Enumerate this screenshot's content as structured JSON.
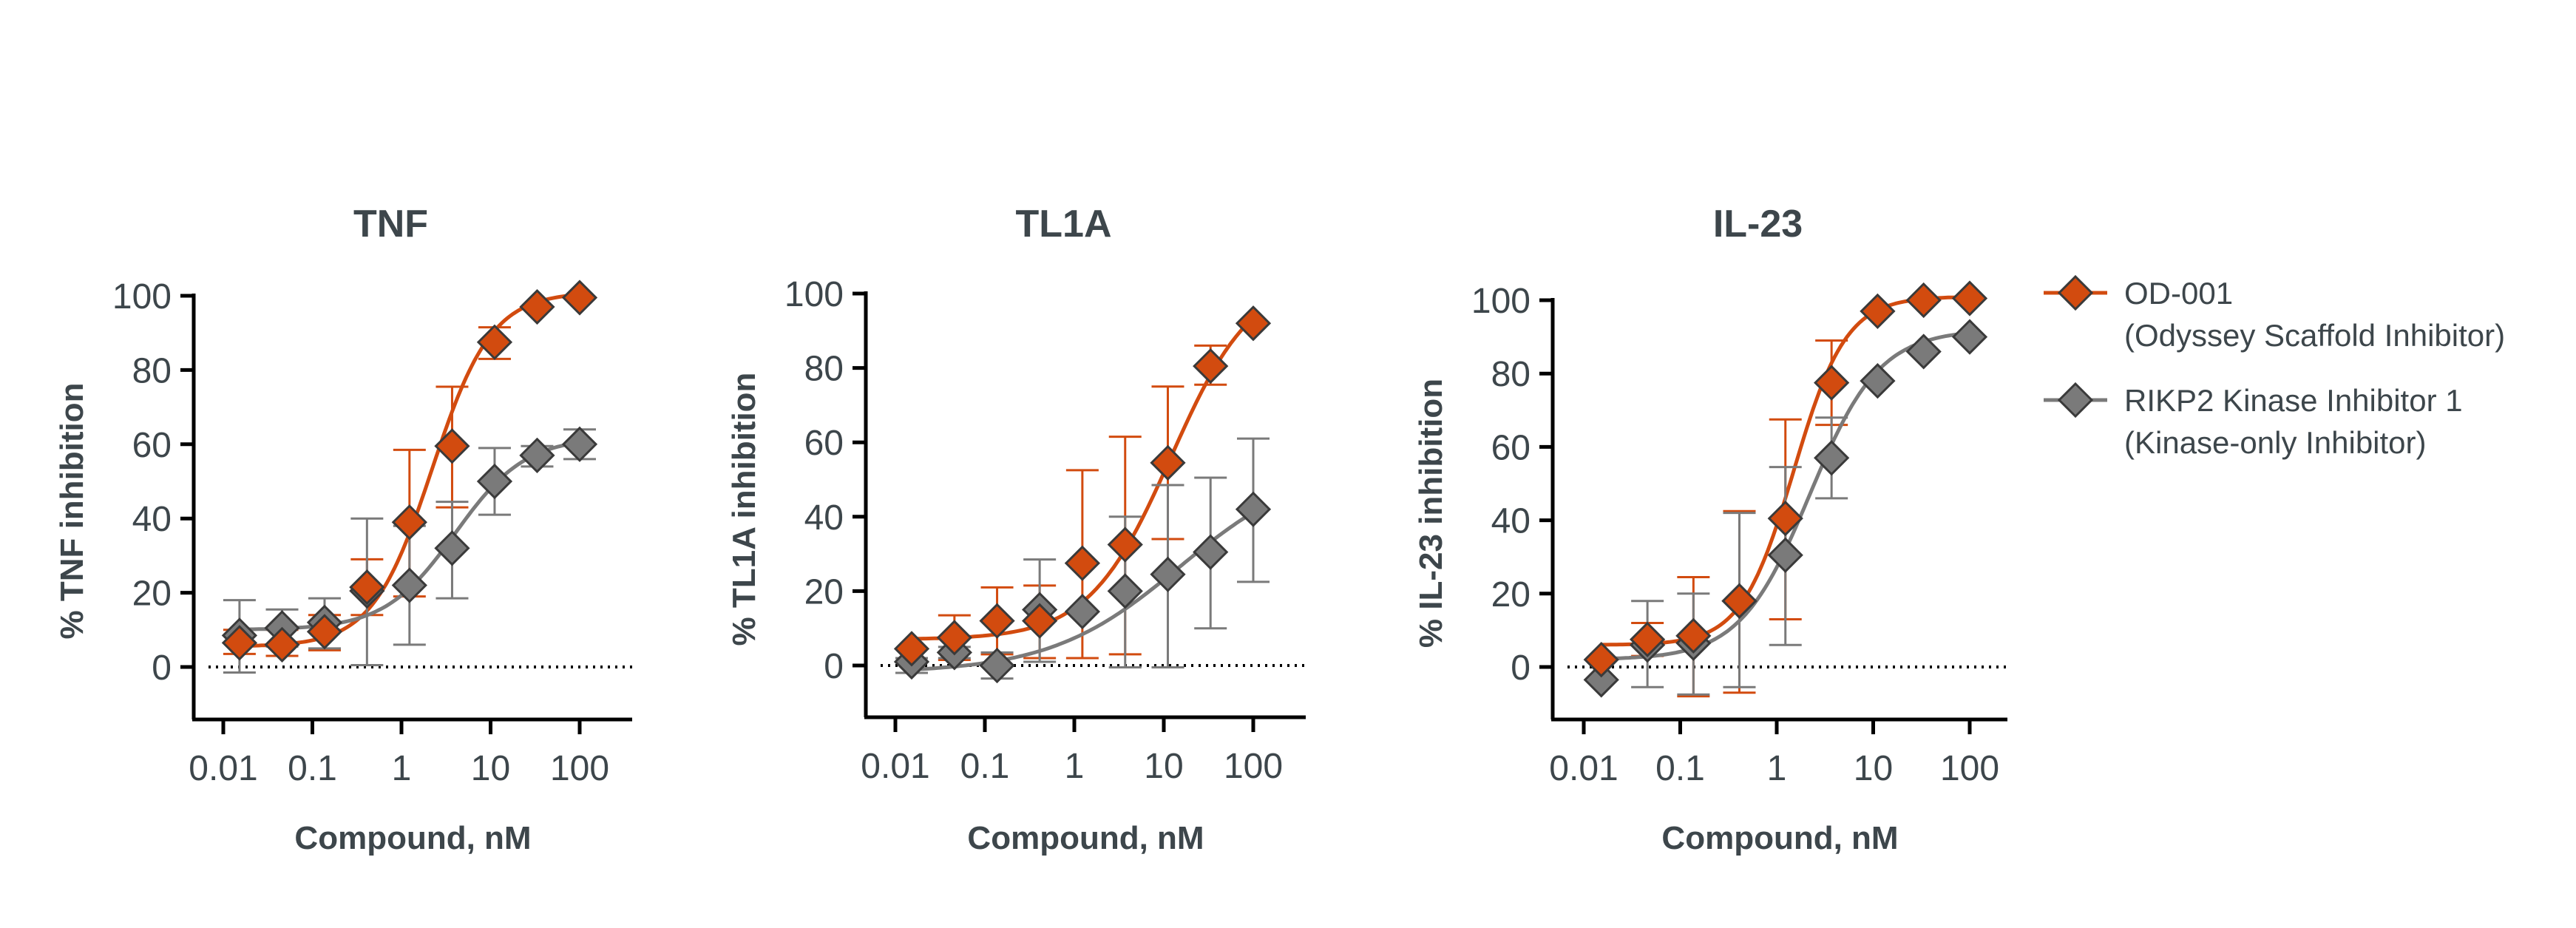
{
  "colors": {
    "od001": "#d24b0f",
    "rikp2": "#7a7a7a",
    "text": "#3d464b",
    "marker_edge": "#3a3a3a"
  },
  "legend": {
    "placement": "right",
    "items": [
      {
        "line1": "OD-001",
        "line2": "(Odyssey Scaffold Inhibitor)",
        "color_key": "od001",
        "marker": "diamond"
      },
      {
        "line1": "RIKP2 Kinase Inhibitor 1",
        "line2": "(Kinase-only Inhibitor)",
        "color_key": "rikp2",
        "marker": "diamond"
      }
    ]
  },
  "chart_data": [
    {
      "type": "scatter",
      "title": "TNF",
      "xlabel": "Compound, nM",
      "ylabel": "% TNF inhibition",
      "xscale": "log",
      "xlim": [
        0.0063,
        400
      ],
      "ylim": [
        -14,
        100
      ],
      "xticks": [
        "0.01",
        "0.1",
        "1",
        "10",
        "100"
      ],
      "yticks": [
        "0",
        "20",
        "40",
        "60",
        "80",
        "100"
      ],
      "reference_line": {
        "y": 0,
        "style": "dotted"
      },
      "x": [
        0.0152,
        0.0457,
        0.137,
        0.41,
        1.23,
        3.7,
        11.1,
        33.3,
        100
      ],
      "series": [
        {
          "name": "OD-001",
          "values": [
            6.5,
            6,
            9.5,
            21.5,
            39,
            59.5,
            87.5,
            97,
            99.5
          ],
          "err": [
            [
              3.5,
              10
            ],
            [
              3,
              10
            ],
            [
              4.5,
              14
            ],
            [
              14,
              29
            ],
            [
              19,
              58.5
            ],
            [
              43,
              75.5
            ],
            [
              83,
              91.5
            ],
            null,
            null
          ]
        },
        {
          "name": "RIKP2 Kinase Inhibitor 1",
          "values": [
            8.5,
            10.5,
            12,
            20.5,
            22,
            32,
            50,
            57,
            60
          ],
          "err": [
            [
              -1.5,
              18
            ],
            [
              5.5,
              15.5
            ],
            [
              5,
              18.5
            ],
            [
              0.5,
              40
            ],
            [
              6,
              38
            ],
            [
              18.5,
              44.5
            ],
            [
              41,
              59
            ],
            [
              54,
              59.5
            ],
            [
              56,
              64
            ]
          ]
        }
      ]
    },
    {
      "type": "scatter",
      "title": "TL1A",
      "xlabel": "Compound, nM",
      "ylabel": "% TL1A inhibition",
      "xscale": "log",
      "xlim": [
        0.0063,
        400
      ],
      "ylim": [
        -15,
        100
      ],
      "xticks": [
        "0.01",
        "0.1",
        "1",
        "10",
        "100"
      ],
      "yticks": [
        "0",
        "20",
        "40",
        "60",
        "80",
        "100"
      ],
      "reference_line": {
        "y": 0,
        "style": "dotted"
      },
      "x": [
        0.0152,
        0.0457,
        0.137,
        0.41,
        1.23,
        3.7,
        11.1,
        33.3,
        100
      ],
      "series": [
        {
          "name": "OD-001",
          "values": [
            4.5,
            7.5,
            12,
            12,
            27.5,
            32.5,
            54.5,
            80.5,
            92
          ],
          "err": [
            null,
            [
              1.5,
              13.5
            ],
            [
              3,
              21
            ],
            [
              2,
              21.5
            ],
            [
              2,
              52.5
            ],
            [
              3,
              61.5
            ],
            [
              34,
              75
            ],
            [
              75.5,
              86
            ],
            null
          ]
        },
        {
          "name": "RIKP2 Kinase Inhibitor 1",
          "values": [
            1,
            3.5,
            0,
            15,
            14.5,
            20,
            24.5,
            30.5,
            42
          ],
          "err": [
            [
              -2,
              2
            ],
            [
              2,
              5
            ],
            [
              -3.5,
              3.5
            ],
            [
              1,
              28.5
            ],
            null,
            [
              -0.5,
              40
            ],
            [
              -0.5,
              48.5
            ],
            [
              10,
              50.5
            ],
            [
              22.5,
              61
            ]
          ]
        }
      ]
    },
    {
      "type": "scatter",
      "title": "IL-23",
      "xlabel": "Compound, nM",
      "ylabel": "% IL-23 inhibition",
      "xscale": "log",
      "xlim": [
        0.0063,
        250
      ],
      "ylim": [
        -15,
        100
      ],
      "xticks": [
        "0.01",
        "0.1",
        "1",
        "10",
        "100"
      ],
      "yticks": [
        "0",
        "20",
        "40",
        "60",
        "80",
        "100"
      ],
      "reference_line": {
        "y": 0,
        "style": "dotted"
      },
      "x": [
        0.0152,
        0.0457,
        0.137,
        0.41,
        1.23,
        3.7,
        11.1,
        33.3,
        100
      ],
      "series": [
        {
          "name": "OD-001",
          "values": [
            2,
            7.5,
            8.5,
            18,
            40.5,
            77.5,
            97,
            100,
            100.5
          ],
          "err": [
            null,
            [
              3,
              12
            ],
            [
              -8,
              24.5
            ],
            [
              -7,
              42.5
            ],
            [
              13,
              67.5
            ],
            [
              66,
              89
            ],
            null,
            null,
            null
          ]
        },
        {
          "name": "RIKP2 Kinase Inhibitor 1",
          "values": [
            -3.5,
            6,
            6.5,
            18,
            30.5,
            57,
            78,
            86,
            90
          ],
          "err": [
            null,
            [
              -5.5,
              18
            ],
            [
              -7.5,
              20
            ],
            [
              -5.5,
              42
            ],
            [
              6,
              54.5
            ],
            [
              46,
              68
            ],
            null,
            null,
            null
          ]
        }
      ]
    }
  ]
}
